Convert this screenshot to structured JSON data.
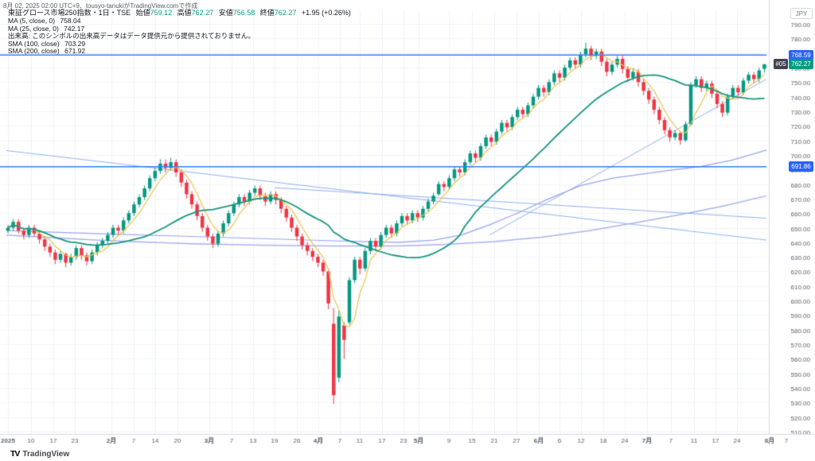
{
  "header": {
    "created_note": "8月 02, 2025 02:00 UTC+9、tousyo-tanukiがTradingView.comで作成"
  },
  "legend": {
    "symbol_text": "東証グロース市場250指数・1日・TSE",
    "ohlc": [
      {
        "label": "始値",
        "value": "759.12"
      },
      {
        "label": "高値",
        "value": "762.27"
      },
      {
        "label": "安値",
        "value": "756.58"
      },
      {
        "label": "終値",
        "value": "762.27"
      }
    ],
    "change": "+1.95 (+0.26%)",
    "ma5": {
      "label": "MA (5, close, 0)",
      "value": "758.04"
    },
    "ma25": {
      "label": "MA (25, close, 0)",
      "value": "742.17"
    },
    "volume_note": "出来高: このシンボルの出来高データはデータ提供元から提供されておりません。",
    "sma100": {
      "label": "SMA (100, close)",
      "value": "703.29"
    },
    "sma200": {
      "label": "SMA (200, close)",
      "value": "671.92"
    }
  },
  "price_scale": {
    "currency_button": "JPY",
    "upper_line_label": "768.59",
    "lower_line_label": "691.86",
    "last_price_badge": {
      "countdown": "#05",
      "value": "762.27"
    }
  },
  "footer": {
    "mark": "TV",
    "brand": "TradingView"
  },
  "chart_data": {
    "type": "candlestick",
    "title": "東証グロース市場250指数 1日 TSE",
    "ylabel": "JPY",
    "ylim": [
      510,
      790
    ],
    "grid": true,
    "plot": {
      "x0": 10,
      "dx": 6.6,
      "body": 4.5,
      "top": 30,
      "top_price": 790,
      "bottom": 543,
      "bottom_price": 510,
      "right": 966,
      "axis_y": 546,
      "label_y": 557,
      "ylabel_x": 1018
    },
    "colors": {
      "up": "#089981",
      "down": "#f23645",
      "grid_h": "#f0f3f9",
      "grid_v": "#eef1f8",
      "axis_text": "#5a5e69",
      "separator": "#d8dbe2",
      "ma5": "#edc24e",
      "ma25": "#17967e",
      "sma100": "#99a3ee",
      "sma200": "#aab2ec",
      "trendline": "#8fb0f0",
      "ray": "#2e7fff"
    },
    "y_ticks": [
      790,
      780,
      770,
      760,
      750,
      740,
      730,
      720,
      710,
      700,
      690,
      680,
      670,
      660,
      650,
      640,
      630,
      620,
      610,
      600,
      590,
      580,
      570,
      560,
      550,
      540,
      530,
      520,
      510
    ],
    "x_ticks": [
      {
        "x": 10,
        "label": "2025",
        "b": 1
      },
      {
        "x": 39,
        "label": "10"
      },
      {
        "x": 67,
        "label": "17"
      },
      {
        "x": 94,
        "label": "23"
      },
      {
        "x": 140,
        "label": "2月",
        "b": 1
      },
      {
        "x": 168,
        "label": "7"
      },
      {
        "x": 195,
        "label": "14"
      },
      {
        "x": 223,
        "label": "20"
      },
      {
        "x": 263,
        "label": "3月",
        "b": 1
      },
      {
        "x": 291,
        "label": "7"
      },
      {
        "x": 318,
        "label": "13"
      },
      {
        "x": 345,
        "label": "19"
      },
      {
        "x": 373,
        "label": "26"
      },
      {
        "x": 400,
        "label": "4月",
        "b": 1
      },
      {
        "x": 427,
        "label": "7"
      },
      {
        "x": 452,
        "label": "11"
      },
      {
        "x": 480,
        "label": "17"
      },
      {
        "x": 507,
        "label": "23"
      },
      {
        "x": 526,
        "label": "5月",
        "b": 1
      },
      {
        "x": 564,
        "label": "9"
      },
      {
        "x": 593,
        "label": "15"
      },
      {
        "x": 621,
        "label": "21"
      },
      {
        "x": 649,
        "label": "27"
      },
      {
        "x": 677,
        "label": "6月",
        "b": 1
      },
      {
        "x": 703,
        "label": "6"
      },
      {
        "x": 730,
        "label": "12"
      },
      {
        "x": 758,
        "label": "18"
      },
      {
        "x": 785,
        "label": "24"
      },
      {
        "x": 813,
        "label": "7月",
        "b": 1
      },
      {
        "x": 843,
        "label": "7"
      },
      {
        "x": 872,
        "label": "11"
      },
      {
        "x": 899,
        "label": "17"
      },
      {
        "x": 926,
        "label": "24"
      },
      {
        "x": 967,
        "label": "8月",
        "b": 1
      },
      {
        "x": 988,
        "label": "7"
      }
    ],
    "rays": [
      {
        "price": 768.59,
        "label": "768.59"
      },
      {
        "price": 691.86,
        "label": "691.86"
      }
    ],
    "trendlines": [
      {
        "x1": 8,
        "p1": 703,
        "x2": 963,
        "p2": 641.5
      },
      {
        "x1": 345,
        "p1": 677.5,
        "x2": 963,
        "p2": 656.5
      },
      {
        "x1": 615,
        "p1": 645,
        "x2": 963,
        "p2": 752
      }
    ],
    "sma100_points": [
      [
        8,
        648
      ],
      [
        120,
        646
      ],
      [
        240,
        644
      ],
      [
        330,
        642.5
      ],
      [
        420,
        641
      ],
      [
        500,
        640
      ],
      [
        545,
        641.5
      ],
      [
        580,
        645
      ],
      [
        615,
        652
      ],
      [
        650,
        660
      ],
      [
        690,
        670
      ],
      [
        730,
        679
      ],
      [
        770,
        684
      ],
      [
        810,
        687
      ],
      [
        850,
        690
      ],
      [
        880,
        692
      ],
      [
        920,
        696.5
      ],
      [
        963,
        703.3
      ]
    ],
    "sma200_points": [
      [
        8,
        645
      ],
      [
        120,
        641.5
      ],
      [
        240,
        639
      ],
      [
        330,
        638
      ],
      [
        420,
        637.5
      ],
      [
        500,
        637.5
      ],
      [
        560,
        638.5
      ],
      [
        620,
        640.5
      ],
      [
        680,
        643.5
      ],
      [
        740,
        648
      ],
      [
        800,
        653.5
      ],
      [
        860,
        659.5
      ],
      [
        910,
        665
      ],
      [
        963,
        671.9
      ]
    ],
    "ma_overlays": [
      {
        "period": 5,
        "color_key": "ma5",
        "width": 1.2
      },
      {
        "period": 25,
        "color_key": "ma25",
        "width": 1.8
      }
    ],
    "last_close": 762.27,
    "candles": [
      [
        648,
        652,
        646,
        650
      ],
      [
        650,
        656,
        648,
        654
      ],
      [
        654,
        656,
        646,
        648
      ],
      [
        648,
        650,
        642,
        645
      ],
      [
        645,
        652,
        643,
        650
      ],
      [
        650,
        652,
        644,
        646
      ],
      [
        646,
        648,
        639,
        642
      ],
      [
        642,
        644,
        634,
        637
      ],
      [
        637,
        639,
        630,
        633
      ],
      [
        633,
        635,
        625,
        628
      ],
      [
        628,
        634,
        626,
        632
      ],
      [
        632,
        633,
        623,
        626
      ],
      [
        626,
        632,
        624,
        630
      ],
      [
        630,
        638,
        628,
        636
      ],
      [
        636,
        638,
        628,
        631
      ],
      [
        631,
        633,
        624,
        627
      ],
      [
        627,
        635,
        625,
        633
      ],
      [
        633,
        640,
        631,
        638
      ],
      [
        638,
        643,
        636,
        641
      ],
      [
        641,
        647,
        639,
        645
      ],
      [
        645,
        652,
        643,
        650
      ],
      [
        650,
        652,
        645,
        648
      ],
      [
        648,
        657,
        646,
        655
      ],
      [
        655,
        662,
        653,
        660
      ],
      [
        660,
        668,
        658,
        666
      ],
      [
        666,
        673,
        664,
        671
      ],
      [
        671,
        679,
        669,
        677
      ],
      [
        677,
        686,
        675,
        684
      ],
      [
        684,
        691,
        682,
        689
      ],
      [
        689,
        697,
        687,
        694
      ],
      [
        694,
        697,
        688,
        691
      ],
      [
        691,
        698,
        689,
        695
      ],
      [
        695,
        697,
        685,
        688
      ],
      [
        688,
        690,
        678,
        681
      ],
      [
        681,
        683,
        670,
        673
      ],
      [
        673,
        675,
        663,
        666
      ],
      [
        666,
        668,
        655,
        658
      ],
      [
        658,
        660,
        647,
        650
      ],
      [
        650,
        652,
        641,
        644
      ],
      [
        644,
        646,
        636,
        639
      ],
      [
        639,
        648,
        637,
        646
      ],
      [
        646,
        655,
        644,
        653
      ],
      [
        653,
        662,
        651,
        660
      ],
      [
        660,
        668,
        658,
        666
      ],
      [
        666,
        673,
        664,
        671
      ],
      [
        671,
        673,
        665,
        668
      ],
      [
        668,
        676,
        666,
        674
      ],
      [
        674,
        679,
        672,
        677
      ],
      [
        677,
        679,
        669,
        672
      ],
      [
        672,
        674,
        665,
        668
      ],
      [
        668,
        675,
        666,
        673
      ],
      [
        673,
        675,
        666,
        669
      ],
      [
        669,
        671,
        660,
        663
      ],
      [
        663,
        665,
        654,
        657
      ],
      [
        657,
        659,
        647,
        650
      ],
      [
        650,
        652,
        641,
        644
      ],
      [
        644,
        646,
        635,
        638
      ],
      [
        638,
        640,
        631,
        634
      ],
      [
        634,
        636,
        627,
        630
      ],
      [
        630,
        632,
        623,
        626
      ],
      [
        626,
        628,
        617,
        620
      ],
      [
        620,
        622,
        594,
        598
      ],
      [
        584,
        595,
        529,
        535
      ],
      [
        547,
        593,
        544,
        589
      ],
      [
        583,
        585,
        560,
        573
      ],
      [
        585,
        616,
        583,
        614
      ],
      [
        614,
        630,
        612,
        628
      ],
      [
        628,
        630,
        618,
        622
      ],
      [
        622,
        636,
        620,
        634
      ],
      [
        634,
        643,
        632,
        641
      ],
      [
        641,
        643,
        634,
        637
      ],
      [
        637,
        647,
        635,
        645
      ],
      [
        645,
        652,
        643,
        650
      ],
      [
        650,
        652,
        643,
        646
      ],
      [
        646,
        655,
        644,
        653
      ],
      [
        653,
        660,
        651,
        658
      ],
      [
        658,
        660,
        652,
        655
      ],
      [
        655,
        662,
        653,
        660
      ],
      [
        660,
        662,
        654,
        657
      ],
      [
        657,
        665,
        655,
        663
      ],
      [
        663,
        670,
        661,
        668
      ],
      [
        668,
        674,
        666,
        672
      ],
      [
        673,
        682,
        672,
        680
      ],
      [
        680,
        682,
        675,
        678
      ],
      [
        678,
        686,
        676,
        684
      ],
      [
        684,
        692,
        682,
        690
      ],
      [
        690,
        692,
        685,
        688
      ],
      [
        688,
        697,
        686,
        695
      ],
      [
        695,
        703,
        693,
        701
      ],
      [
        701,
        703,
        695,
        698
      ],
      [
        698,
        708,
        696,
        706
      ],
      [
        706,
        714,
        704,
        712
      ],
      [
        712,
        714,
        706,
        709
      ],
      [
        709,
        718,
        707,
        716
      ],
      [
        716,
        724,
        714,
        722
      ],
      [
        722,
        724,
        716,
        719
      ],
      [
        719,
        728,
        717,
        726
      ],
      [
        726,
        733,
        724,
        731
      ],
      [
        731,
        733,
        725,
        728
      ],
      [
        728,
        736,
        726,
        734
      ],
      [
        734,
        742,
        732,
        740
      ],
      [
        740,
        748,
        738,
        746
      ],
      [
        746,
        748,
        740,
        743
      ],
      [
        743,
        752,
        741,
        750
      ],
      [
        750,
        758,
        748,
        756
      ],
      [
        756,
        758,
        750,
        753
      ],
      [
        753,
        762,
        751,
        760
      ],
      [
        760,
        767,
        758,
        765
      ],
      [
        765,
        767,
        759,
        762
      ],
      [
        762,
        771,
        760,
        769
      ],
      [
        769,
        777,
        767,
        773
      ],
      [
        773,
        775,
        765,
        768
      ],
      [
        768,
        773,
        766,
        771
      ],
      [
        771,
        773,
        761,
        764
      ],
      [
        764,
        766,
        754,
        757
      ],
      [
        757,
        764,
        755,
        762
      ],
      [
        762,
        768,
        760,
        766
      ],
      [
        766,
        768,
        756,
        759
      ],
      [
        759,
        761,
        750,
        753
      ],
      [
        753,
        759,
        751,
        757
      ],
      [
        757,
        759,
        747,
        750
      ],
      [
        750,
        752,
        741,
        744
      ],
      [
        744,
        746,
        735,
        738
      ],
      [
        738,
        740,
        728,
        731
      ],
      [
        731,
        733,
        721,
        724
      ],
      [
        724,
        726,
        714,
        717
      ],
      [
        717,
        719,
        709,
        712
      ],
      [
        712,
        717,
        710,
        715
      ],
      [
        715,
        716,
        707,
        710
      ],
      [
        710,
        723,
        709,
        721
      ],
      [
        721,
        750,
        720,
        748
      ],
      [
        748,
        754,
        746,
        752
      ],
      [
        752,
        754,
        743,
        746
      ],
      [
        746,
        751,
        744,
        749
      ],
      [
        749,
        751,
        739,
        742
      ],
      [
        742,
        744,
        732,
        735
      ],
      [
        735,
        737,
        726,
        729
      ],
      [
        729,
        742,
        727,
        740
      ],
      [
        740,
        748,
        738,
        746
      ],
      [
        746,
        748,
        740,
        743
      ],
      [
        743,
        753,
        741,
        751
      ],
      [
        751,
        757,
        749,
        755
      ],
      [
        755,
        757,
        749,
        752
      ],
      [
        752,
        760,
        750,
        758
      ],
      [
        759.12,
        762.27,
        756.58,
        762.27
      ]
    ]
  }
}
